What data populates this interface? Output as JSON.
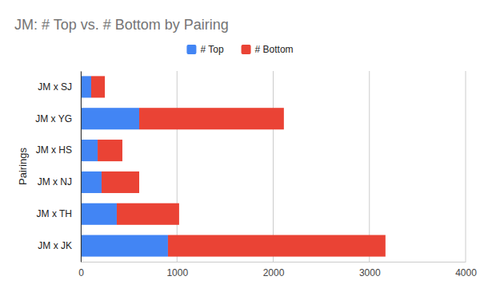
{
  "chart_data": {
    "type": "bar",
    "title": "JM: # Top vs. # Bottom by Pairing",
    "orientation": "horizontal",
    "stacked": true,
    "grid": true,
    "legend": "top",
    "y_label": "Pairings",
    "categories": [
      "JM x SJ",
      "JM x YG",
      "JM x HS",
      "JM x NJ",
      "JM x TH",
      "JM x JK"
    ],
    "series": [
      {
        "name": "# Top",
        "color": "#4285f4",
        "values": [
          108,
          607,
          175,
          216,
          374,
          906
        ]
      },
      {
        "name": "# Bottom",
        "color": "#ea4335",
        "values": [
          142,
          1504,
          257,
          391,
          648,
          2261
        ]
      }
    ],
    "xlim": [
      0,
      4000
    ],
    "xticks": [
      0,
      1000,
      2000,
      3000,
      4000
    ]
  }
}
